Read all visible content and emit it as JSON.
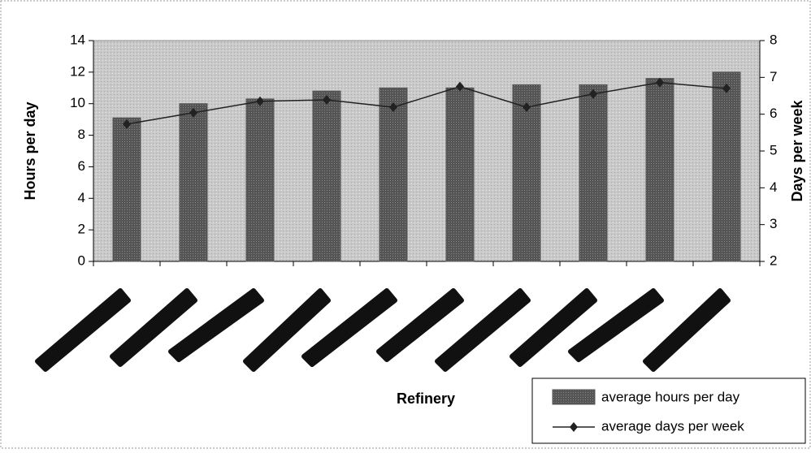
{
  "chart_data": {
    "type": "bar-line",
    "categories": [
      null,
      null,
      null,
      null,
      null,
      null,
      null,
      null,
      null,
      null
    ],
    "x_label": "Refinery",
    "y_label": "Hours per day",
    "y2_label": "Days per week",
    "ylim": [
      0,
      14
    ],
    "yticks": [
      0,
      2,
      4,
      6,
      8,
      10,
      12,
      14
    ],
    "y2lim": [
      2,
      8
    ],
    "y2ticks": [
      2,
      3,
      4,
      5,
      6,
      7,
      8
    ],
    "series": [
      {
        "name": "average hours per day",
        "type": "bar",
        "color": "#555555",
        "values": [
          9.1,
          10.0,
          10.3,
          10.8,
          11.0,
          11.0,
          11.2,
          11.2,
          11.6,
          12.0
        ]
      },
      {
        "name": "average days per week",
        "type": "line",
        "axis": "y2",
        "color": "#222222",
        "values": [
          5.73,
          6.04,
          6.35,
          6.39,
          6.19,
          6.75,
          6.19,
          6.55,
          6.86,
          6.7
        ]
      }
    ],
    "legend": "bottom-right"
  }
}
